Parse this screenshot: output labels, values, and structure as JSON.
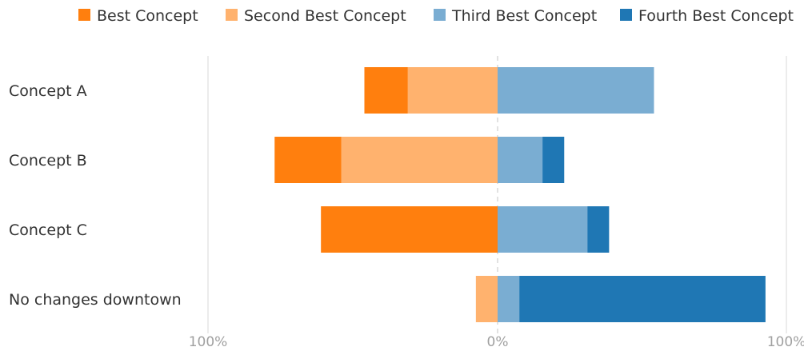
{
  "chart_data": {
    "type": "bar",
    "orientation": "horizontal",
    "diverging": true,
    "categories": [
      "Concept A",
      "Concept B",
      "Concept C",
      "No changes downtown"
    ],
    "series": [
      {
        "name": "Best Concept",
        "side": "left",
        "color": "#ff7f0e",
        "values": [
          15,
          23,
          61,
          0
        ]
      },
      {
        "name": "Second Best Concept",
        "side": "left",
        "color": "#ffb26e",
        "values": [
          31,
          54,
          0,
          7.5
        ]
      },
      {
        "name": "Third Best Concept",
        "side": "right",
        "color": "#7aadd2",
        "values": [
          54,
          15.5,
          31,
          7.5
        ]
      },
      {
        "name": "Fourth Best Concept",
        "side": "right",
        "color": "#1f77b4",
        "values": [
          0,
          7.5,
          7.5,
          85
        ]
      }
    ],
    "xlim": [
      -100,
      100
    ],
    "x_ticks": [
      "100%",
      "0%",
      "100%"
    ],
    "grid": true,
    "legend_position": "top"
  }
}
